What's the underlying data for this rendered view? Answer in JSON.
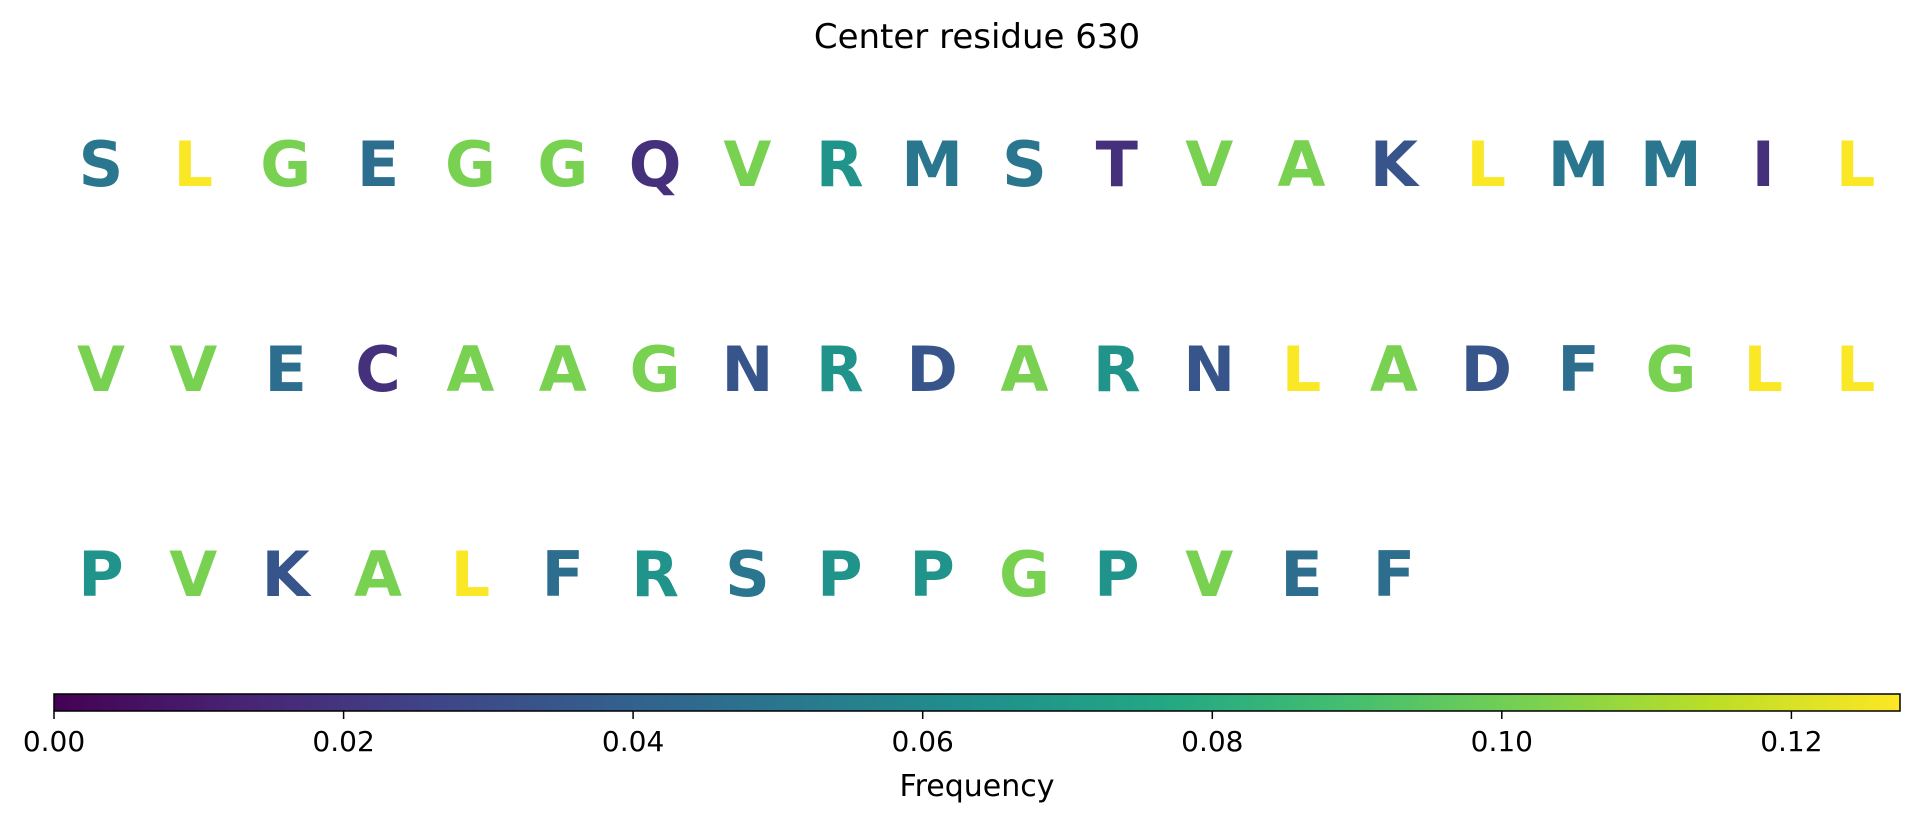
{
  "chart_data": {
    "type": "table",
    "title": "Center residue 630",
    "colorbar": {
      "label": "Frequency",
      "range": [
        0.0,
        0.1275
      ],
      "colormap": "viridis",
      "ticks": [
        {
          "value": 0.0,
          "label": "0.00"
        },
        {
          "value": 0.02,
          "label": "0.02"
        },
        {
          "value": 0.04,
          "label": "0.04"
        },
        {
          "value": 0.06,
          "label": "0.06"
        },
        {
          "value": 0.08,
          "label": "0.08"
        },
        {
          "value": 0.1,
          "label": "0.10"
        },
        {
          "value": 0.12,
          "label": "0.12"
        }
      ]
    },
    "columns_per_row": 20,
    "residues": [
      {
        "letter": "S",
        "frequency": 0.05
      },
      {
        "letter": "L",
        "frequency": 0.127
      },
      {
        "letter": "G",
        "frequency": 0.102
      },
      {
        "letter": "E",
        "frequency": 0.046
      },
      {
        "letter": "G",
        "frequency": 0.102
      },
      {
        "letter": "G",
        "frequency": 0.102
      },
      {
        "letter": "Q",
        "frequency": 0.018
      },
      {
        "letter": "V",
        "frequency": 0.102
      },
      {
        "letter": "R",
        "frequency": 0.066
      },
      {
        "letter": "M",
        "frequency": 0.05
      },
      {
        "letter": "S",
        "frequency": 0.05
      },
      {
        "letter": "T",
        "frequency": 0.018
      },
      {
        "letter": "V",
        "frequency": 0.102
      },
      {
        "letter": "A",
        "frequency": 0.102
      },
      {
        "letter": "K",
        "frequency": 0.034
      },
      {
        "letter": "L",
        "frequency": 0.127
      },
      {
        "letter": "M",
        "frequency": 0.05
      },
      {
        "letter": "M",
        "frequency": 0.05
      },
      {
        "letter": "I",
        "frequency": 0.018
      },
      {
        "letter": "L",
        "frequency": 0.127
      },
      {
        "letter": "V",
        "frequency": 0.102
      },
      {
        "letter": "V",
        "frequency": 0.102
      },
      {
        "letter": "E",
        "frequency": 0.046
      },
      {
        "letter": "C",
        "frequency": 0.018
      },
      {
        "letter": "A",
        "frequency": 0.102
      },
      {
        "letter": "A",
        "frequency": 0.102
      },
      {
        "letter": "G",
        "frequency": 0.102
      },
      {
        "letter": "N",
        "frequency": 0.034
      },
      {
        "letter": "R",
        "frequency": 0.066
      },
      {
        "letter": "D",
        "frequency": 0.034
      },
      {
        "letter": "A",
        "frequency": 0.102
      },
      {
        "letter": "R",
        "frequency": 0.066
      },
      {
        "letter": "N",
        "frequency": 0.034
      },
      {
        "letter": "L",
        "frequency": 0.127
      },
      {
        "letter": "A",
        "frequency": 0.102
      },
      {
        "letter": "D",
        "frequency": 0.034
      },
      {
        "letter": "F",
        "frequency": 0.046
      },
      {
        "letter": "G",
        "frequency": 0.102
      },
      {
        "letter": "L",
        "frequency": 0.127
      },
      {
        "letter": "L",
        "frequency": 0.127
      },
      {
        "letter": "P",
        "frequency": 0.066
      },
      {
        "letter": "V",
        "frequency": 0.102
      },
      {
        "letter": "K",
        "frequency": 0.034
      },
      {
        "letter": "A",
        "frequency": 0.102
      },
      {
        "letter": "L",
        "frequency": 0.127
      },
      {
        "letter": "F",
        "frequency": 0.046
      },
      {
        "letter": "R",
        "frequency": 0.066
      },
      {
        "letter": "S",
        "frequency": 0.05
      },
      {
        "letter": "P",
        "frequency": 0.066
      },
      {
        "letter": "P",
        "frequency": 0.066
      },
      {
        "letter": "G",
        "frequency": 0.102
      },
      {
        "letter": "P",
        "frequency": 0.066
      },
      {
        "letter": "V",
        "frequency": 0.102
      },
      {
        "letter": "E",
        "frequency": 0.046
      },
      {
        "letter": "F",
        "frequency": 0.046
      }
    ]
  }
}
